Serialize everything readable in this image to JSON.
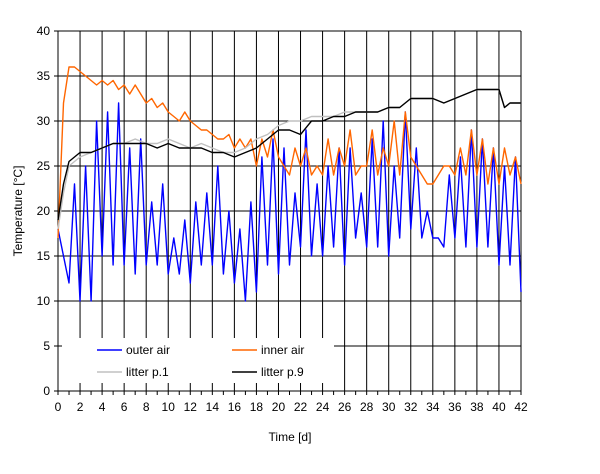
{
  "chart_data": {
    "type": "line",
    "title": "",
    "xlabel": "Time [d]",
    "ylabel": "Temperature [°C]",
    "xlim": [
      0,
      42
    ],
    "ylim": [
      0,
      40
    ],
    "xticks": [
      "0",
      "2",
      "4",
      "6",
      "8",
      "10",
      "12",
      "14",
      "16",
      "18",
      "20",
      "22",
      "24",
      "26",
      "28",
      "30",
      "32",
      "34",
      "36",
      "38",
      "40",
      "42"
    ],
    "yticks": [
      "0",
      "5",
      "10",
      "15",
      "20",
      "25",
      "30",
      "35",
      "40"
    ],
    "grid": true,
    "legend_position": "bottom-left inside",
    "series": [
      {
        "name": "outer air",
        "color": "#0000ff",
        "x": [
          0,
          0.5,
          1,
          1.5,
          2,
          2.5,
          3,
          3.5,
          4,
          4.5,
          5,
          5.5,
          6,
          6.5,
          7,
          7.5,
          8,
          8.5,
          9,
          9.5,
          10,
          10.5,
          11,
          11.5,
          12,
          12.5,
          13,
          13.5,
          14,
          14.5,
          15,
          15.5,
          16,
          16.5,
          17,
          17.5,
          18,
          18.5,
          19,
          19.5,
          20,
          20.5,
          21,
          21.5,
          22,
          22.5,
          23,
          23.5,
          24,
          24.5,
          25,
          25.5,
          26,
          26.5,
          27,
          27.5,
          28,
          28.5,
          29,
          29.5,
          30,
          30.5,
          31,
          31.5,
          32,
          32.5,
          33,
          33.5,
          34,
          34.5,
          35,
          35.5,
          36,
          36.5,
          37,
          37.5,
          38,
          38.5,
          39,
          39.5,
          40,
          40.5,
          41,
          41.5,
          42
        ],
        "y": [
          18,
          15,
          12,
          23,
          10,
          25,
          10,
          30,
          15,
          31,
          14,
          32,
          14,
          27,
          13,
          28,
          14,
          21,
          14,
          23,
          13,
          17,
          13,
          19,
          12,
          21,
          14,
          22,
          14,
          25,
          13,
          20,
          12,
          18,
          10,
          21,
          11,
          26,
          14,
          28,
          13,
          27,
          14,
          22,
          16,
          29,
          15,
          23,
          15,
          25,
          16,
          27,
          14,
          27,
          17,
          22,
          16,
          28,
          16,
          30,
          15,
          25,
          17,
          31,
          18,
          27,
          17,
          20,
          17,
          17,
          16,
          24,
          17,
          26,
          16,
          29,
          16,
          28,
          16,
          27,
          14,
          25,
          14,
          26,
          11
        ]
      },
      {
        "name": "inner air",
        "color": "#ff6600",
        "x": [
          0,
          0.5,
          1,
          1.5,
          2,
          2.5,
          3,
          3.5,
          4,
          4.5,
          5,
          5.5,
          6,
          6.5,
          7,
          7.5,
          8,
          8.5,
          9,
          9.5,
          10,
          10.5,
          11,
          11.5,
          12,
          12.5,
          13,
          13.5,
          14,
          14.5,
          15,
          15.5,
          16,
          16.5,
          17,
          17.5,
          18,
          18.5,
          19,
          19.5,
          20,
          20.5,
          21,
          21.5,
          22,
          22.5,
          23,
          23.5,
          24,
          24.5,
          25,
          25.5,
          26,
          26.5,
          27,
          27.5,
          28,
          28.5,
          29,
          29.5,
          30,
          30.5,
          31,
          31.5,
          32,
          32.5,
          33,
          33.5,
          34,
          34.5,
          35,
          35.5,
          36,
          36.5,
          37,
          37.5,
          38,
          38.5,
          39,
          39.5,
          40,
          40.5,
          41,
          41.5,
          42
        ],
        "y": [
          17,
          32,
          36,
          36,
          35.5,
          35,
          34.5,
          34,
          34.5,
          34,
          34.5,
          33.5,
          34,
          33,
          34,
          33,
          32,
          32.5,
          31.5,
          32,
          31,
          30.5,
          30,
          31,
          30,
          29.5,
          29,
          29,
          28.5,
          28,
          28,
          28.5,
          27,
          28,
          27,
          28,
          25,
          28,
          26,
          29,
          26,
          25,
          24,
          27,
          25,
          27,
          24,
          25,
          24,
          28,
          24,
          27,
          25,
          29,
          24,
          25,
          25,
          29,
          24,
          27,
          25,
          30,
          24,
          31,
          26,
          25,
          24,
          23,
          23,
          24,
          25,
          25,
          24,
          27,
          24,
          29,
          24,
          28,
          23,
          27,
          23,
          27,
          24,
          26,
          23
        ]
      },
      {
        "name": "litter p.1",
        "color": "#c0c0c0",
        "x": [
          0,
          0.5,
          1,
          2,
          3,
          4,
          5,
          6,
          7,
          8,
          9,
          10,
          11,
          12,
          13,
          14,
          15,
          16,
          17,
          18,
          19,
          20,
          21,
          22,
          23,
          24,
          25,
          26,
          27,
          28,
          29,
          30,
          31,
          32,
          33,
          34,
          35,
          36,
          37,
          38,
          39,
          40,
          40.5,
          41,
          42
        ],
        "y": [
          18,
          22,
          25,
          26,
          26.5,
          27,
          27.5,
          27.5,
          28,
          27.5,
          27.5,
          28,
          27.5,
          27,
          27.5,
          27,
          26.5,
          26.5,
          27,
          28,
          28.5,
          29.5,
          30,
          30,
          30.5,
          30.5,
          30.5,
          31,
          31,
          31,
          31,
          31.5,
          31.5,
          32.5,
          32.5,
          32.5,
          32,
          32.5,
          33,
          33.5,
          33.5,
          33.5,
          31.5,
          32,
          32
        ]
      },
      {
        "name": "litter p.9",
        "color": "#000000",
        "x": [
          0,
          0.5,
          1,
          2,
          3,
          4,
          5,
          6,
          7,
          8,
          9,
          10,
          11,
          12,
          13,
          14,
          15,
          16,
          17,
          18,
          19,
          20,
          21,
          22,
          23,
          24,
          25,
          26,
          27,
          28,
          29,
          30,
          31,
          32,
          33,
          34,
          35,
          36,
          37,
          38,
          39,
          40,
          40.5,
          41,
          42
        ],
        "y": [
          19,
          23,
          25.5,
          26.5,
          26.5,
          27,
          27.5,
          27.5,
          27.5,
          27.5,
          27,
          27.5,
          27,
          27,
          27,
          26.5,
          26.5,
          26,
          26.5,
          27,
          28,
          29,
          29,
          28.5,
          30,
          30,
          30.5,
          30.5,
          31,
          31,
          31,
          31.5,
          31.5,
          32.5,
          32.5,
          32.5,
          32,
          32.5,
          33,
          33.5,
          33.5,
          33.5,
          31.5,
          32,
          32
        ]
      }
    ]
  }
}
